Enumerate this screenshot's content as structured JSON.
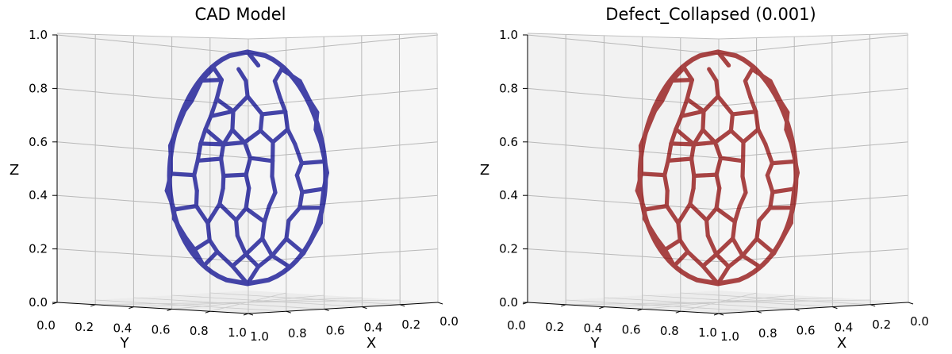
{
  "chart_data": [
    {
      "type": "3d-wireframe",
      "title": "CAD Model",
      "color": "#00008b",
      "xlabel": "X",
      "ylabel": "Y",
      "zlabel": "Z",
      "xlim": [
        0.0,
        1.0
      ],
      "ylim": [
        0.0,
        1.0
      ],
      "zlim": [
        0.0,
        1.0
      ],
      "x_ticks": [
        "0.0",
        "0.2",
        "0.4",
        "0.6",
        "0.8",
        "1.0"
      ],
      "y_ticks": [
        "0.0",
        "0.2",
        "0.4",
        "0.6",
        "0.8",
        "1.0"
      ],
      "z_ticks": [
        "0.0",
        "0.2",
        "0.4",
        "0.6",
        "0.8",
        "1.0"
      ],
      "shape": "egg-shaped Voronoi lattice",
      "shape_extent": {
        "center_x": 0.5,
        "center_y": 0.5,
        "z_min": 0.04,
        "z_max": 0.99
      }
    },
    {
      "type": "3d-wireframe",
      "title": "Defect_Collapsed (0.001)",
      "color": "#8b0000",
      "xlabel": "X",
      "ylabel": "Y",
      "zlabel": "Z",
      "xlim": [
        0.0,
        1.0
      ],
      "ylim": [
        0.0,
        1.0
      ],
      "zlim": [
        0.0,
        1.0
      ],
      "x_ticks": [
        "0.0",
        "0.2",
        "0.4",
        "0.6",
        "0.8",
        "1.0"
      ],
      "y_ticks": [
        "0.0",
        "0.2",
        "0.4",
        "0.6",
        "0.8",
        "1.0"
      ],
      "z_ticks": [
        "0.0",
        "0.2",
        "0.4",
        "0.6",
        "0.8",
        "1.0"
      ],
      "shape": "egg-shaped Voronoi lattice",
      "shape_extent": {
        "center_x": 0.5,
        "center_y": 0.5,
        "z_min": 0.04,
        "z_max": 0.99
      }
    }
  ]
}
